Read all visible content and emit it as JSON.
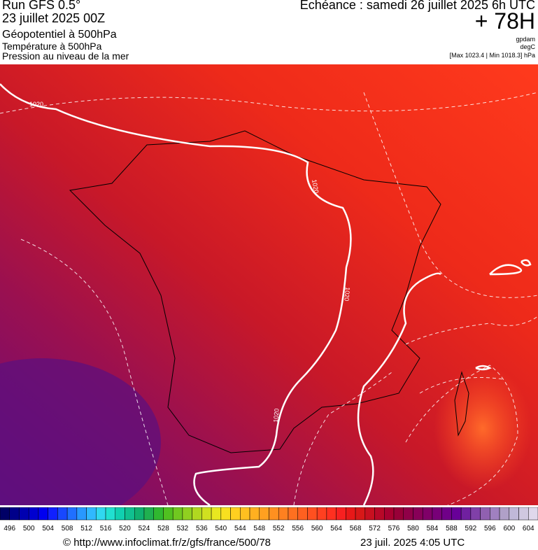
{
  "header": {
    "run": "Run GFS 0.5°",
    "run_date": "23 juillet 2025 00Z",
    "field_1": "Géopotentiel à 500hPa",
    "field_2": "Température à 500hPa",
    "field_3": "Pression au niveau de la mer",
    "valid": "Echéance : samedi 26 juillet 2025 6h UTC",
    "lead": "+ 78H",
    "unit_1": "gpdam",
    "unit_2": "degC",
    "range": "[Max 1023.4 | Min 1018.3] hPa"
  },
  "map": {
    "contour_labels": [
      "1020",
      "1020",
      "1020",
      "1020"
    ]
  },
  "colorbar": {
    "labels": [
      "496",
      "500",
      "504",
      "508",
      "512",
      "516",
      "520",
      "524",
      "528",
      "532",
      "536",
      "540",
      "544",
      "548",
      "552",
      "556",
      "560",
      "564",
      "568",
      "572",
      "576",
      "580",
      "584",
      "588",
      "592",
      "596",
      "600",
      "604"
    ],
    "colors": [
      "#000066",
      "#00008a",
      "#0000b0",
      "#0000d0",
      "#0000f0",
      "#1020ff",
      "#1848ff",
      "#2070ff",
      "#2898ff",
      "#30b8ff",
      "#30d8f0",
      "#20e0d0",
      "#10d0b0",
      "#10c090",
      "#10b070",
      "#20b050",
      "#30b830",
      "#50c020",
      "#70c820",
      "#90d020",
      "#b0d820",
      "#d0e020",
      "#e8e820",
      "#f8e020",
      "#ffd020",
      "#ffc020",
      "#ffb020",
      "#ffa020",
      "#ff9020",
      "#ff8020",
      "#ff7020",
      "#ff6020",
      "#ff5020",
      "#ff4020",
      "#ff3020",
      "#f82020",
      "#e81818",
      "#d81818",
      "#c81020",
      "#b80828",
      "#a80030",
      "#980038",
      "#900048",
      "#880058",
      "#800068",
      "#780078",
      "#700088",
      "#680098",
      "#7020a0",
      "#8040a8",
      "#9060b0",
      "#a080c0",
      "#b0a0c8",
      "#c0b8d8",
      "#d0c8e0",
      "#e0d8ec"
    ]
  },
  "footer": {
    "source": "© http://www.infoclimat.fr/z/gfs/france/500/78",
    "timestamp": "23 juil. 2025  4:05 UTC"
  }
}
